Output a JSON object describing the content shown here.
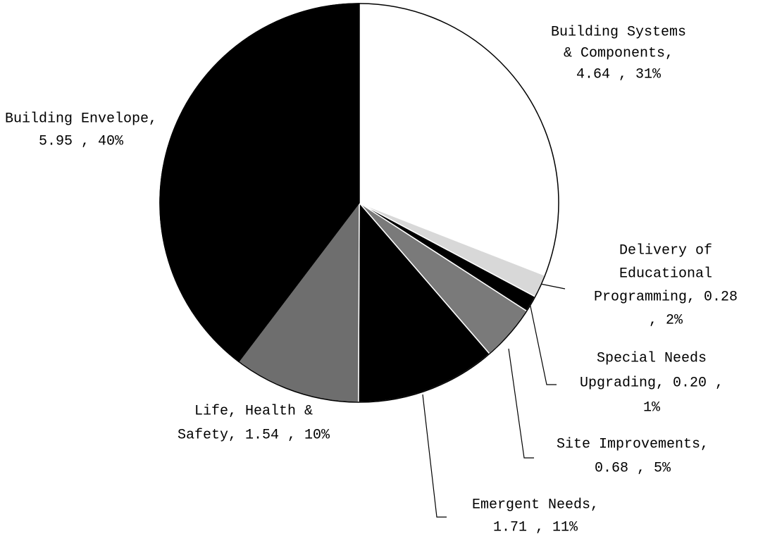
{
  "chart_data": {
    "type": "pie",
    "categories": [
      "Building Systems & Components",
      "Delivery of Educational Programming",
      "Special Needs Upgrading",
      "Site Improvements",
      "Emergent Needs",
      "Life, Health & Safety",
      "Building Envelope"
    ],
    "values": [
      4.64,
      0.28,
      0.2,
      0.68,
      1.71,
      1.54,
      5.95
    ],
    "labels": [
      [
        "Building Systems",
        "& Components,",
        "4.64 , 31%"
      ],
      [
        "Delivery of",
        "Educational",
        "Programming, 0.28",
        ", 2%"
      ],
      [
        "Special Needs",
        "Upgrading, 0.20 ,",
        "1%"
      ],
      [
        "Site Improvements,",
        "0.68 , 5%"
      ],
      [
        "Emergent Needs,",
        "1.71 , 11%"
      ],
      [
        "Life, Health &",
        "Safety, 1.54 , 10%"
      ],
      [
        "Building Envelope,",
        "5.95 , 40%"
      ]
    ],
    "colors": [
      "#ffffff",
      "#d8d8d8",
      "#000000",
      "#7a7a7a",
      "#000000",
      "#6e6e6e",
      "#000000"
    ]
  }
}
